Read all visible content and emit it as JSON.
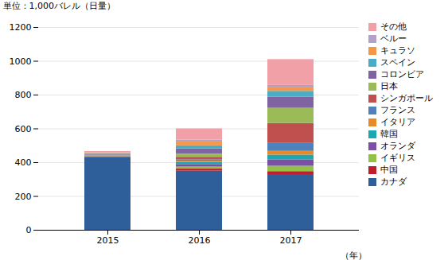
{
  "chart_data": {
    "type": "bar",
    "stacked": true,
    "categories": [
      "2015",
      "2016",
      "2017"
    ],
    "series": [
      {
        "name": "カナダ",
        "color": "#2E5F9A",
        "values": [
          430,
          350,
          325
        ]
      },
      {
        "name": "中国",
        "color": "#BE1E2D",
        "values": [
          5,
          12,
          22
        ]
      },
      {
        "name": "イギリス",
        "color": "#92C147",
        "values": [
          2,
          12,
          32
        ]
      },
      {
        "name": "オランダ",
        "color": "#7B4FA6",
        "values": [
          2,
          15,
          38
        ]
      },
      {
        "name": "韓国",
        "color": "#1BA8B0",
        "values": [
          2,
          12,
          28
        ]
      },
      {
        "name": "イタリア",
        "color": "#E88A2A",
        "values": [
          2,
          8,
          22
        ]
      },
      {
        "name": "フランス",
        "color": "#4F81BD",
        "values": [
          3,
          8,
          50
        ]
      },
      {
        "name": "シンガポール",
        "color": "#C0504D",
        "values": [
          2,
          15,
          115
        ]
      },
      {
        "name": "日本",
        "color": "#9BBB59",
        "values": [
          2,
          20,
          90
        ]
      },
      {
        "name": "コロンビア",
        "color": "#8064A2",
        "values": [
          2,
          30,
          65
        ]
      },
      {
        "name": "スペイン",
        "color": "#4BACC6",
        "values": [
          2,
          18,
          35
        ]
      },
      {
        "name": "キュラソ",
        "color": "#F79646",
        "values": [
          2,
          22,
          20
        ]
      },
      {
        "name": "ベルー",
        "color": "#B3A2C7",
        "values": [
          2,
          12,
          15
        ]
      },
      {
        "name": "その他",
        "color": "#F2A0A8",
        "values": [
          8,
          66,
          153
        ]
      }
    ],
    "xlabel": "（年）",
    "ylabel": "単位：1,000バレル（日量）",
    "ylim": [
      0,
      1200
    ],
    "yticks": [
      0,
      200,
      400,
      600,
      800,
      1000,
      1200
    ],
    "grid": true,
    "legend": "right"
  }
}
